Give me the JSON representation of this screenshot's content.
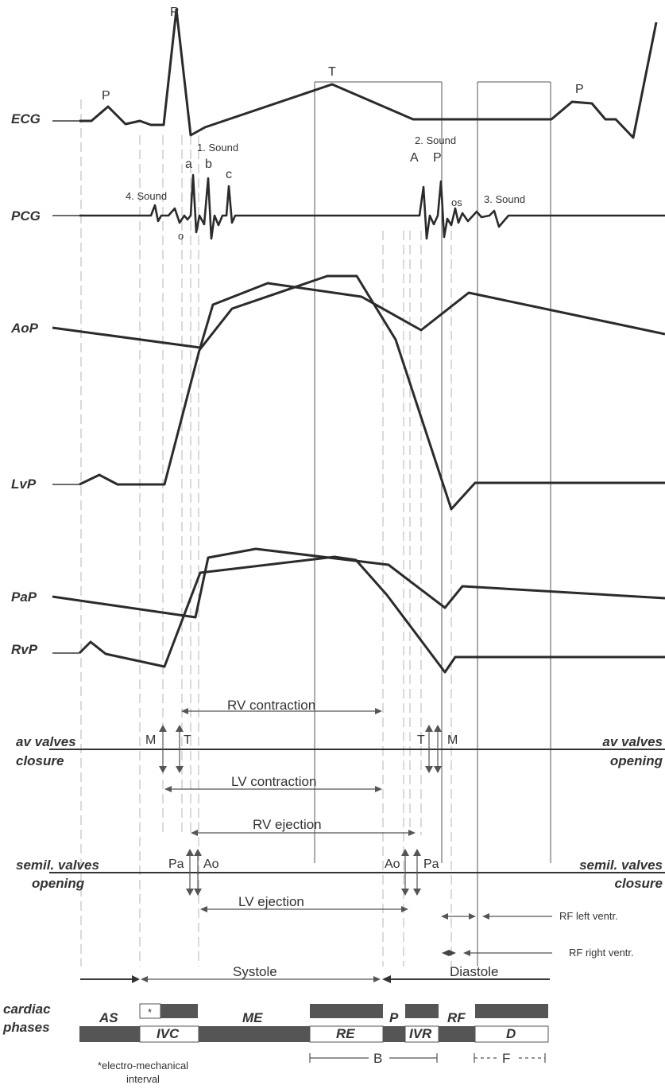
{
  "traces": {
    "ecg": "ECG",
    "pcg": "PCG",
    "aop": "AoP",
    "lvp": "LvP",
    "pap": "PaP",
    "rvp": "RvP"
  },
  "ecg_waves": {
    "p1": "P",
    "r": "R",
    "t": "T",
    "p2": "P"
  },
  "pcg_marks": {
    "sound4": "4. Sound",
    "sound1": "1. Sound",
    "sound2": "2. Sound",
    "sound3": "3. Sound",
    "a": "a",
    "b": "b",
    "c": "c",
    "o": "o",
    "A": "A",
    "P": "P",
    "os": "os"
  },
  "valves": {
    "av_left": [
      "av valves",
      "closure"
    ],
    "av_right": [
      "av valves",
      "opening"
    ],
    "semil_left": [
      "semil. valves",
      "opening"
    ],
    "semil_right": [
      "semil. valves",
      "closure"
    ],
    "M1": "M",
    "T1": "T",
    "T2": "T",
    "M2": "M",
    "Pa1": "Pa",
    "Ao1": "Ao",
    "Ao2": "Ao",
    "Pa2": "Pa"
  },
  "intervals": {
    "rv_contraction": "RV contraction",
    "lv_contraction": "LV contraction",
    "rv_ejection": "RV ejection",
    "lv_ejection": "LV ejection",
    "rf_left": "RF left ventr.",
    "rf_right": "RF  right ventr.",
    "systole": "Systole",
    "diastole": "Diastole"
  },
  "phases": {
    "title": [
      "cardiac",
      "phases"
    ],
    "AS": "AS",
    "star": "*",
    "IVC": "IVC",
    "ME": "ME",
    "RE": "RE",
    "P": "P",
    "IVR": "IVR",
    "RF": "RF",
    "D": "D",
    "B": "B",
    "F": "F",
    "footnote": [
      "*electro-mechanical",
      "interval"
    ]
  }
}
